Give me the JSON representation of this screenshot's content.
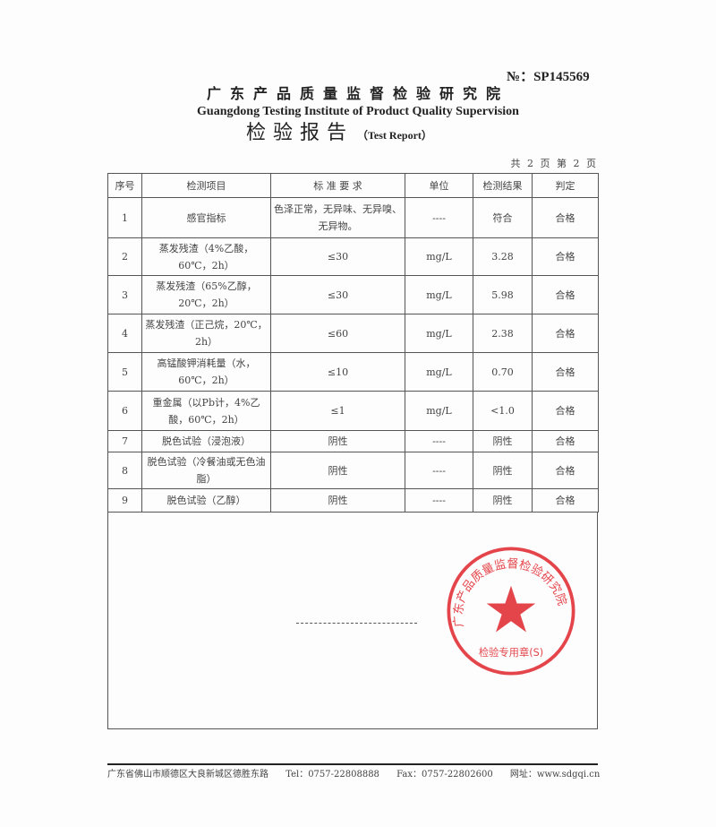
{
  "header": {
    "report_no": "№：SP145569",
    "org_cn": "广东产品质量监督检验研究院",
    "org_en": "Guangdong Testing Institute of Product Quality Supervision",
    "title": "检验报告",
    "title_en": "（Test Report）",
    "pages": "共 2 页 第 2 页"
  },
  "table": {
    "headers": [
      "序号",
      "检测项目",
      "标 准 要 求",
      "单位",
      "检测结果",
      "判定"
    ],
    "rows": [
      {
        "no": "1",
        "item": "感官指标",
        "standard": "色泽正常，无异味、无异嗅、无异物。",
        "unit": "----",
        "result": "符合",
        "verdict": "合格"
      },
      {
        "no": "2",
        "item": "蒸发残渣（4%乙酸，60℃，2h）",
        "standard": "≤30",
        "unit": "mg/L",
        "result": "3.28",
        "verdict": "合格"
      },
      {
        "no": "3",
        "item": "蒸发残渣（65%乙醇，20℃，2h）",
        "standard": "≤30",
        "unit": "mg/L",
        "result": "5.98",
        "verdict": "合格"
      },
      {
        "no": "4",
        "item": "蒸发残渣（正己烷，20℃，2h）",
        "standard": "≤60",
        "unit": "mg/L",
        "result": "2.38",
        "verdict": "合格"
      },
      {
        "no": "5",
        "item": "高锰酸钾消耗量（水，60℃，2h）",
        "standard": "≤10",
        "unit": "mg/L",
        "result": "0.70",
        "verdict": "合格"
      },
      {
        "no": "6",
        "item": "重金属（以Pb计，4%乙酸，60℃，2h）",
        "standard": "≤1",
        "unit": "mg/L",
        "result": "<1.0",
        "verdict": "合格"
      },
      {
        "no": "7",
        "item": "脱色试验（浸泡液）",
        "standard": "阴性",
        "unit": "----",
        "result": "阴性",
        "verdict": "合格"
      },
      {
        "no": "8",
        "item": "脱色试验（冷餐油或无色油脂）",
        "standard": "阴性",
        "unit": "----",
        "result": "阴性",
        "verdict": "合格"
      },
      {
        "no": "9",
        "item": "脱色试验（乙醇）",
        "standard": "阴性",
        "unit": "----",
        "result": "阴性",
        "verdict": "合格"
      }
    ]
  },
  "stamp": {
    "ring_text": "广东产品质量监督检验研究院",
    "bottom_text": "检验专用章(S)",
    "color": "#e0262c"
  },
  "footer": {
    "address": "广东省佛山市顺德区大良新城区德胜东路",
    "tel": "Tel：0757-22808888",
    "fax": "Fax：0757-22802600",
    "web": "网址：www.sdgqi.cn"
  }
}
